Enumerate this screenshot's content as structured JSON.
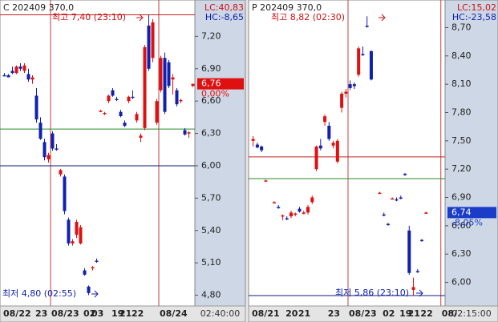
{
  "chart_data": [
    {
      "type": "candlestick",
      "header": "C 202409 370,0",
      "lc": "LC:40,83",
      "hc": "HC:-8,65",
      "high_label": "최고 7,40 (23:10)",
      "low_label": "최저 4,80 (02:55)",
      "time_label": "02:40:00",
      "up_color": "#e01010",
      "down_color": "#1020b0",
      "categories": [
        "08/22",
        null,
        null,
        null,
        null,
        null,
        null,
        null,
        "23",
        null,
        null,
        null,
        "08/23",
        null,
        null,
        null,
        null,
        null,
        null,
        null,
        "02",
        null,
        "03",
        null,
        null,
        null,
        null,
        "19",
        null,
        "21",
        null,
        null,
        "22",
        null,
        null,
        null,
        null,
        null,
        null,
        "08/24",
        null,
        null,
        null,
        null,
        null,
        null,
        null,
        null
      ],
      "open": [
        6.84,
        6.84,
        6.88,
        6.86,
        6.92,
        6.88,
        6.85,
        6.8,
        6.65,
        6.4,
        6.22,
        6.06,
        6.3,
        6.16,
        5.92,
        5.9,
        5.5,
        5.28,
        5.36,
        5.28,
        5.03,
        4.88,
        5.05,
        5.12,
        6.51,
        6.48,
        6.6,
        6.7,
        6.62,
        6.5,
        6.4,
        6.6,
        6.64,
        6.42,
        6.26,
        6.35,
        7.3,
        7.0,
        6.4,
        6.7,
        7.0,
        6.96,
        6.8,
        6.7,
        6.6,
        6.33,
        6.3,
        6.74
      ],
      "high": [
        6.86,
        6.85,
        6.92,
        6.93,
        6.95,
        6.95,
        6.9,
        6.84,
        6.72,
        6.45,
        6.25,
        6.12,
        6.32,
        6.2,
        5.97,
        5.92,
        5.52,
        5.32,
        5.5,
        5.45,
        5.05,
        4.89,
        5.07,
        5.14,
        6.52,
        6.5,
        6.66,
        6.72,
        6.64,
        6.52,
        6.42,
        6.65,
        6.7,
        6.5,
        6.3,
        7.12,
        7.4,
        7.36,
        6.62,
        7.02,
        7.05,
        6.98,
        6.85,
        6.72,
        6.62,
        6.35,
        6.32,
        6.76
      ],
      "low": [
        6.83,
        6.82,
        6.85,
        6.85,
        6.88,
        6.86,
        6.78,
        6.76,
        6.4,
        6.24,
        6.05,
        6.03,
        6.14,
        6.14,
        5.9,
        5.55,
        5.26,
        5.26,
        5.33,
        5.27,
        4.98,
        4.8,
        5.03,
        5.1,
        6.5,
        6.47,
        6.58,
        6.64,
        6.6,
        6.45,
        6.36,
        6.58,
        6.62,
        6.4,
        6.22,
        6.33,
        6.88,
        6.96,
        6.38,
        6.68,
        6.48,
        6.72,
        6.66,
        6.55,
        6.58,
        6.28,
        6.26,
        6.73
      ],
      "close": [
        6.83,
        6.82,
        6.86,
        6.92,
        6.9,
        6.93,
        6.8,
        6.82,
        6.43,
        6.25,
        6.08,
        6.1,
        6.16,
        6.15,
        5.96,
        5.58,
        5.28,
        5.3,
        5.48,
        5.43,
        4.99,
        4.82,
        5.06,
        5.11,
        6.51,
        6.49,
        6.65,
        6.65,
        6.61,
        6.46,
        6.37,
        6.64,
        6.63,
        6.48,
        6.28,
        7.1,
        6.9,
        7.33,
        6.6,
        7.0,
        6.5,
        6.74,
        6.82,
        6.57,
        6.61,
        6.29,
        6.31,
        6.76
      ],
      "ylim": [
        4.7,
        7.5
      ],
      "yticks": [
        {
          "value": 7.2,
          "label": "7,20"
        },
        {
          "value": 6.9,
          "label": "6,90"
        },
        {
          "value": 6.6,
          "label": "6,60"
        },
        {
          "value": 6.3,
          "label": "6,30"
        },
        {
          "value": 6.0,
          "label": "6,00"
        },
        {
          "value": 5.7,
          "label": "5,70"
        },
        {
          "value": 5.4,
          "label": "5,40"
        },
        {
          "value": 5.1,
          "label": "5,10"
        },
        {
          "value": 4.8,
          "label": "4,80"
        }
      ],
      "hlines": [
        {
          "value": 7.4,
          "color": "#c02020"
        },
        {
          "value": 6.34,
          "color": "#2a8a2a"
        },
        {
          "value": 6.0,
          "color": "#101a80"
        }
      ],
      "last": {
        "value": 6.76,
        "label": "6,76",
        "change": "0,00%",
        "color": "#e01010"
      }
    },
    {
      "type": "candlestick",
      "header": "P 202409 370,0",
      "lc": "LC:15,02",
      "hc": "HC:-23,58",
      "high_label": "최고 8,82 (02:30)",
      "low_label": "최저 5,86 (23:10)",
      "time_label": "02:15:00",
      "up_color": "#e01010",
      "down_color": "#1020b0",
      "categories": [
        "08/21",
        null,
        null,
        null,
        null,
        null,
        null,
        null,
        "20",
        null,
        null,
        "21",
        null,
        null,
        null,
        null,
        null,
        null,
        "23",
        null,
        null,
        null,
        null,
        "08/23",
        null,
        null,
        null,
        null,
        null,
        null,
        null,
        "02",
        null,
        null,
        null,
        "19",
        null,
        "21",
        null,
        null,
        "22",
        null,
        null,
        null,
        null,
        "08/"
      ],
      "open": [
        7.5,
        7.46,
        7.44,
        7.08,
        null,
        6.85,
        6.8,
        6.7,
        6.68,
        6.7,
        6.72,
        6.78,
        6.73,
        6.74,
        6.85,
        7.2,
        7.45,
        7.7,
        7.66,
        7.45,
        7.28,
        7.85,
        8.0,
        8.1,
        8.1,
        8.2,
        8.42,
        8.72,
        8.45,
        null,
        6.95,
        6.72,
        6.62,
        6.89,
        6.88,
        6.9,
        7.15,
        6.55,
        5.92,
        6.12,
        6.45,
        6.74,
        null,
        null,
        null,
        null
      ],
      "high": [
        7.55,
        7.48,
        7.45,
        7.09,
        null,
        6.86,
        6.82,
        6.72,
        6.7,
        6.76,
        6.74,
        6.8,
        6.76,
        6.82,
        6.92,
        7.45,
        7.52,
        7.78,
        7.7,
        7.5,
        7.52,
        8.02,
        8.05,
        8.14,
        8.12,
        8.5,
        8.5,
        8.82,
        8.46,
        null,
        6.96,
        6.74,
        6.63,
        6.9,
        6.9,
        6.92,
        7.16,
        6.6,
        6.05,
        6.14,
        6.46,
        6.75,
        null,
        null,
        null,
        null
      ],
      "low": [
        7.44,
        7.42,
        7.38,
        7.07,
        null,
        6.84,
        6.78,
        6.66,
        6.66,
        6.68,
        6.7,
        6.74,
        6.72,
        6.72,
        6.83,
        7.18,
        7.4,
        7.66,
        7.5,
        7.42,
        7.26,
        7.8,
        7.96,
        8.04,
        8.05,
        8.18,
        8.4,
        8.7,
        8.14,
        null,
        6.94,
        6.7,
        6.6,
        6.88,
        6.86,
        6.88,
        7.13,
        6.08,
        5.86,
        6.1,
        6.43,
        6.73,
        null,
        null,
        null,
        null
      ],
      "close": [
        7.52,
        7.43,
        7.4,
        7.08,
        null,
        6.85,
        6.79,
        6.71,
        6.67,
        6.74,
        6.73,
        6.75,
        6.74,
        6.8,
        6.9,
        7.44,
        7.42,
        7.76,
        7.52,
        7.48,
        7.5,
        8.0,
        8.02,
        8.06,
        8.08,
        8.48,
        8.41,
        8.71,
        8.15,
        null,
        6.95,
        6.71,
        6.61,
        6.89,
        6.87,
        6.89,
        7.14,
        6.1,
        5.95,
        6.11,
        6.44,
        6.74,
        null,
        null,
        null,
        null
      ],
      "ylim": [
        5.75,
        8.95
      ],
      "yticks": [
        {
          "value": 8.7,
          "label": "8,70"
        },
        {
          "value": 8.4,
          "label": "8,40"
        },
        {
          "value": 8.1,
          "label": "8,10"
        },
        {
          "value": 7.8,
          "label": "7,80"
        },
        {
          "value": 7.5,
          "label": "7,50"
        },
        {
          "value": 7.2,
          "label": "7,20"
        },
        {
          "value": 6.9,
          "label": "6,90"
        },
        {
          "value": 6.6,
          "label": "6,60"
        },
        {
          "value": 6.3,
          "label": "6,30"
        },
        {
          "value": 6.0,
          "label": "6,00"
        }
      ],
      "hlines": [
        {
          "value": 7.33,
          "color": "#c02020"
        },
        {
          "value": 7.1,
          "color": "#2a8a2a"
        },
        {
          "value": 5.86,
          "color": "#101a80"
        }
      ],
      "last": {
        "value": 6.74,
        "label": "6,74",
        "change": "-8,05%",
        "color": "#1a3cc8"
      }
    }
  ]
}
